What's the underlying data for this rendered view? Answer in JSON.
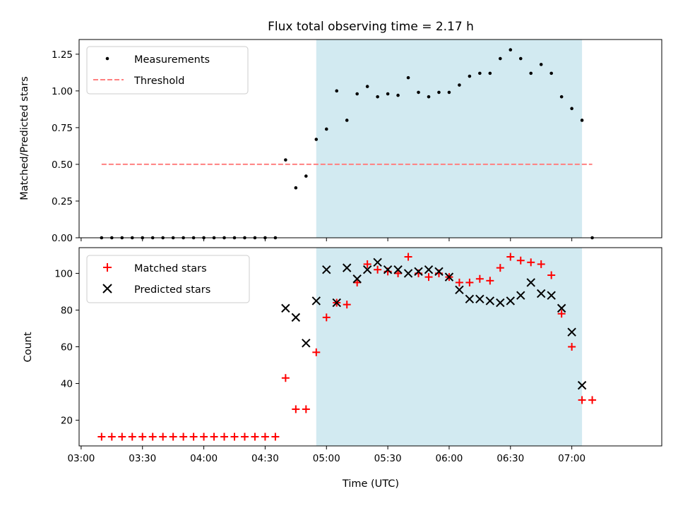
{
  "chart_data": [
    {
      "type": "scatter",
      "panel": "top",
      "title": "Flux total observing time = 2.17 h",
      "ylabel": "Matched/Predicted stars",
      "xlabel": "",
      "xlim": [
        "02:59",
        "07:44"
      ],
      "ylim": [
        0,
        1.35
      ],
      "yticks": [
        "0.00",
        "0.25",
        "0.50",
        "0.75",
        "1.00",
        "1.25"
      ],
      "grid": false,
      "legend_position": "top-left",
      "highlight_span": {
        "start": "04:55",
        "end": "07:05",
        "color": "#add8e6"
      },
      "threshold": {
        "name": "Threshold",
        "y": 0.5,
        "x_start": "03:10",
        "x_end": "07:10",
        "color": "#ff8080",
        "style": "dashed"
      },
      "series": [
        {
          "name": "Measurements",
          "marker": "dot",
          "color": "#000000",
          "x": [
            "03:10",
            "03:15",
            "03:20",
            "03:25",
            "03:30",
            "03:35",
            "03:40",
            "03:45",
            "03:50",
            "03:55",
            "04:00",
            "04:05",
            "04:10",
            "04:15",
            "04:20",
            "04:25",
            "04:30",
            "04:35",
            "04:40",
            "04:45",
            "04:50",
            "04:55",
            "05:00",
            "05:05",
            "05:10",
            "05:15",
            "05:20",
            "05:25",
            "05:30",
            "05:35",
            "05:40",
            "05:45",
            "05:50",
            "05:55",
            "06:00",
            "06:05",
            "06:10",
            "06:15",
            "06:20",
            "06:25",
            "06:30",
            "06:35",
            "06:40",
            "06:45",
            "06:50",
            "06:55",
            "07:00",
            "07:05",
            "07:10"
          ],
          "y": [
            0,
            0,
            0,
            0,
            0,
            0,
            0,
            0,
            0,
            0,
            0,
            0,
            0,
            0,
            0,
            0,
            0,
            0,
            0.53,
            0.34,
            0.42,
            0.67,
            0.74,
            1.0,
            0.8,
            0.98,
            1.03,
            0.96,
            0.98,
            0.97,
            1.09,
            0.99,
            0.96,
            0.99,
            0.99,
            1.04,
            1.1,
            1.12,
            1.12,
            1.22,
            1.28,
            1.22,
            1.12,
            1.18,
            1.12,
            0.96,
            0.88,
            0.8,
            0
          ]
        }
      ]
    },
    {
      "type": "scatter",
      "panel": "bottom",
      "title": "",
      "xlabel": "Time (UTC)",
      "ylabel": "Count",
      "xlim": [
        "02:59",
        "07:44"
      ],
      "ylim": [
        6,
        114
      ],
      "xticks": [
        "03:00",
        "03:30",
        "04:00",
        "04:30",
        "05:00",
        "05:30",
        "06:00",
        "06:30",
        "07:00"
      ],
      "yticks": [
        "20",
        "40",
        "60",
        "80",
        "100"
      ],
      "grid": false,
      "legend_position": "top-left",
      "highlight_span": {
        "start": "04:55",
        "end": "07:05",
        "color": "#add8e6"
      },
      "series": [
        {
          "name": "Matched stars",
          "marker": "plus",
          "color": "#ff0000",
          "x": [
            "03:10",
            "03:15",
            "03:20",
            "03:25",
            "03:30",
            "03:35",
            "03:40",
            "03:45",
            "03:50",
            "03:55",
            "04:00",
            "04:05",
            "04:10",
            "04:15",
            "04:20",
            "04:25",
            "04:30",
            "04:35",
            "04:40",
            "04:45",
            "04:50",
            "04:55",
            "05:00",
            "05:05",
            "05:10",
            "05:15",
            "05:20",
            "05:25",
            "05:30",
            "05:35",
            "05:40",
            "05:45",
            "05:50",
            "05:55",
            "06:00",
            "06:05",
            "06:10",
            "06:15",
            "06:20",
            "06:25",
            "06:30",
            "06:35",
            "06:40",
            "06:45",
            "06:50",
            "06:55",
            "07:00",
            "07:05",
            "07:10"
          ],
          "y": [
            11,
            11,
            11,
            11,
            11,
            11,
            11,
            11,
            11,
            11,
            11,
            11,
            11,
            11,
            11,
            11,
            11,
            11,
            43,
            26,
            26,
            57,
            76,
            84,
            83,
            95,
            105,
            102,
            101,
            100,
            109,
            100,
            98,
            100,
            98,
            95,
            95,
            97,
            96,
            103,
            109,
            107,
            106,
            105,
            99,
            78,
            60,
            31,
            31
          ]
        },
        {
          "name": "Predicted stars",
          "marker": "x",
          "color": "#000000",
          "x": [
            "04:40",
            "04:45",
            "04:50",
            "04:55",
            "05:00",
            "05:05",
            "05:10",
            "05:15",
            "05:20",
            "05:25",
            "05:30",
            "05:35",
            "05:40",
            "05:45",
            "05:50",
            "05:55",
            "06:00",
            "06:05",
            "06:10",
            "06:15",
            "06:20",
            "06:25",
            "06:30",
            "06:35",
            "06:40",
            "06:45",
            "06:50",
            "06:55",
            "07:00",
            "07:05"
          ],
          "y": [
            81,
            76,
            62,
            85,
            102,
            84,
            103,
            97,
            102,
            106,
            102,
            102,
            100,
            101,
            102,
            101,
            98,
            91,
            86,
            86,
            85,
            84,
            85,
            88,
            95,
            89,
            88,
            81,
            68,
            39
          ]
        }
      ]
    }
  ]
}
